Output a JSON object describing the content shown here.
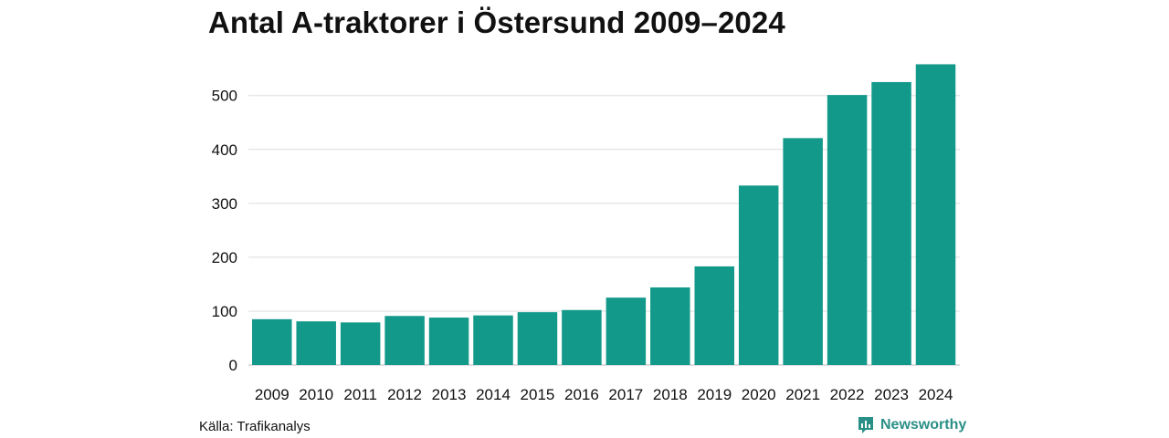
{
  "header": {
    "title": "Antal A-traktorer i Östersund 2009–2024"
  },
  "footer": {
    "source": "Källa: Trafikanalys",
    "brand": "Newsworthy"
  },
  "colors": {
    "bar": "#13998a",
    "grid": "#dddddd",
    "brand": "#2a8f86"
  },
  "chart_data": {
    "type": "bar",
    "title": "Antal A-traktorer i Östersund 2009–2024",
    "xlabel": "",
    "ylabel": "",
    "categories": [
      "2009",
      "2010",
      "2011",
      "2012",
      "2013",
      "2014",
      "2015",
      "2016",
      "2017",
      "2018",
      "2019",
      "2020",
      "2021",
      "2022",
      "2023",
      "2024"
    ],
    "values": [
      85,
      81,
      79,
      91,
      88,
      92,
      98,
      102,
      125,
      144,
      183,
      333,
      421,
      501,
      525,
      558
    ],
    "ylim": [
      0,
      560
    ],
    "yticks": [
      0,
      100,
      200,
      300,
      400,
      500
    ],
    "grid": true
  }
}
